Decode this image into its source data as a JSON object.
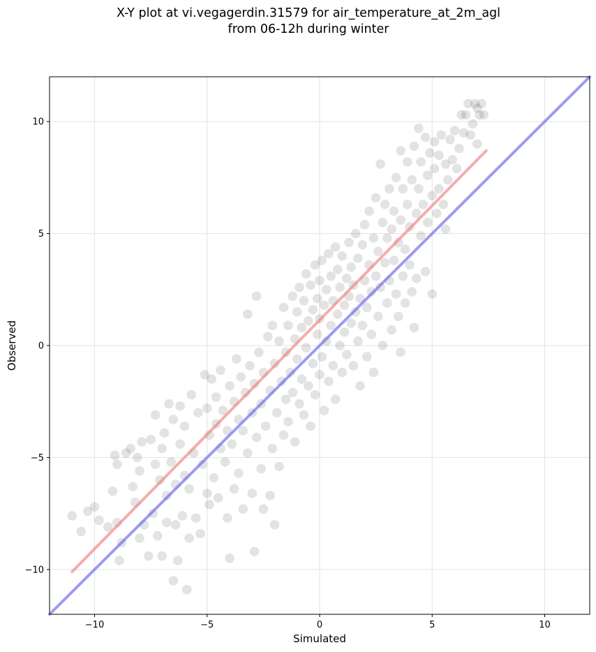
{
  "title": {
    "line1": "X-Y plot at vi.vegagerdin.31579 for air_temperature_at_2m_agl",
    "line2": "from 06-12h during winter"
  },
  "chart_data": {
    "type": "scatter",
    "title": "X-Y plot at vi.vegagerdin.31579 for air_temperature_at_2m_agl from 06-12h during winter",
    "xlabel": "Simulated",
    "ylabel": "Observed",
    "xlim": [
      -12,
      12
    ],
    "ylim": [
      -12,
      12
    ],
    "xticks": [
      -10,
      -5,
      0,
      5,
      10
    ],
    "yticks": [
      -10,
      -5,
      0,
      5,
      10
    ],
    "xtick_labels": [
      "−10",
      "−5",
      "0",
      "5",
      "10"
    ],
    "ytick_labels": [
      "−10",
      "−5",
      "0",
      "5",
      "10"
    ],
    "grid": true,
    "colors": {
      "points": "#000000",
      "fit_line": "#f08080",
      "identity_line": "#6666ee"
    },
    "series": [
      {
        "type": "scatter",
        "points": [
          [
            -11,
            -7.6
          ],
          [
            -10.6,
            -8.3
          ],
          [
            -10.3,
            -7.4
          ],
          [
            -10,
            -7.2
          ],
          [
            -9.8,
            -7.8
          ],
          [
            -9.4,
            -8.1
          ],
          [
            -9.2,
            -6.5
          ],
          [
            -9.1,
            -4.9
          ],
          [
            -9,
            -5.3
          ],
          [
            -9,
            -7.9
          ],
          [
            -8.9,
            -9.6
          ],
          [
            -8.8,
            -8.8
          ],
          [
            -8.6,
            -4.8
          ],
          [
            -8.4,
            -4.6
          ],
          [
            -8.3,
            -6.3
          ],
          [
            -8.2,
            -7.0
          ],
          [
            -8.1,
            -5.0
          ],
          [
            -8,
            -8.6
          ],
          [
            -8,
            -5.6
          ],
          [
            -7.9,
            -4.3
          ],
          [
            -7.8,
            -8.0
          ],
          [
            -7.6,
            -9.4
          ],
          [
            -7.5,
            -4.2
          ],
          [
            -7.4,
            -7.5
          ],
          [
            -7.3,
            -5.3
          ],
          [
            -7.3,
            -3.1
          ],
          [
            -7.2,
            -8.5
          ],
          [
            -7.1,
            -6.0
          ],
          [
            -7,
            -4.6
          ],
          [
            -7,
            -9.4
          ],
          [
            -6.9,
            -3.9
          ],
          [
            -6.8,
            -7.9
          ],
          [
            -6.8,
            -6.7
          ],
          [
            -6.7,
            -2.6
          ],
          [
            -6.6,
            -5.2
          ],
          [
            -6.5,
            -3.3
          ],
          [
            -6.5,
            -10.5
          ],
          [
            -6.4,
            -8.0
          ],
          [
            -6.4,
            -6.2
          ],
          [
            -6.3,
            -9.6
          ],
          [
            -6.2,
            -4.4
          ],
          [
            -6.2,
            -2.7
          ],
          [
            -6.1,
            -7.6
          ],
          [
            -6,
            -5.8
          ],
          [
            -6,
            -3.6
          ],
          [
            -5.9,
            -10.9
          ],
          [
            -5.8,
            -8.6
          ],
          [
            -5.8,
            -6.4
          ],
          [
            -5.7,
            -2.2
          ],
          [
            -5.6,
            -4.8
          ],
          [
            -5.5,
            -7.7
          ],
          [
            -5.4,
            -3.0
          ],
          [
            -5.3,
            -8.4
          ],
          [
            -5.2,
            -5.3
          ],
          [
            -5.1,
            -1.3
          ],
          [
            -5,
            -6.6
          ],
          [
            -5,
            -2.8
          ],
          [
            -4.9,
            -4.0
          ],
          [
            -4.9,
            -7.1
          ],
          [
            -4.8,
            -1.5
          ],
          [
            -4.7,
            -5.9
          ],
          [
            -4.6,
            -3.5
          ],
          [
            -4.6,
            -2.3
          ],
          [
            -4.5,
            -6.8
          ],
          [
            -4.4,
            -4.6
          ],
          [
            -4.4,
            -1.1
          ],
          [
            -4.3,
            -2.9
          ],
          [
            -4.2,
            -5.2
          ],
          [
            -4.1,
            -3.8
          ],
          [
            -4.1,
            -7.7
          ],
          [
            -4,
            -1.8
          ],
          [
            -4,
            -9.5
          ],
          [
            -3.9,
            -4.4
          ],
          [
            -3.8,
            -2.5
          ],
          [
            -3.8,
            -6.4
          ],
          [
            -3.7,
            -0.6
          ],
          [
            -3.6,
            -3.3
          ],
          [
            -3.6,
            -5.7
          ],
          [
            -3.5,
            -1.4
          ],
          [
            -3.4,
            -7.3
          ],
          [
            -3.4,
            -3.8
          ],
          [
            -3.3,
            -2.1
          ],
          [
            -3.2,
            -4.8
          ],
          [
            -3.2,
            1.4
          ],
          [
            -3.1,
            -0.9
          ],
          [
            -3,
            -6.6
          ],
          [
            -3,
            -3.0
          ],
          [
            -2.9,
            -9.2
          ],
          [
            -2.9,
            -1.7
          ],
          [
            -2.8,
            -4.1
          ],
          [
            -2.8,
            2.2
          ],
          [
            -2.7,
            -0.3
          ],
          [
            -2.6,
            -5.5
          ],
          [
            -2.6,
            -2.6
          ],
          [
            -2.5,
            -7.3
          ],
          [
            -2.5,
            -1.2
          ],
          [
            -2.4,
            -3.6
          ],
          [
            -2.3,
            0.4
          ],
          [
            -2.2,
            -6.7
          ],
          [
            -2.2,
            -2.0
          ],
          [
            -2.1,
            -4.6
          ],
          [
            -2.1,
            0.9
          ],
          [
            -2,
            -0.8
          ],
          [
            -2,
            -8.0
          ],
          [
            -1.9,
            -3.0
          ],
          [
            -1.8,
            -5.4
          ],
          [
            -1.8,
            0.2
          ],
          [
            -1.7,
            -1.6
          ],
          [
            -1.6,
            -4.0
          ],
          [
            -1.6,
            1.7
          ],
          [
            -1.5,
            -2.4
          ],
          [
            -1.5,
            -0.3
          ],
          [
            -1.4,
            0.9
          ],
          [
            -1.4,
            -3.4
          ],
          [
            -1.3,
            -1.2
          ],
          [
            -1.2,
            2.2
          ],
          [
            -1.2,
            -2.1
          ],
          [
            -1.1,
            0.3
          ],
          [
            -1.1,
            -4.3
          ],
          [
            -1,
            -0.6
          ],
          [
            -1,
            1.5
          ],
          [
            -0.9,
            -2.6
          ],
          [
            -0.9,
            2.6
          ],
          [
            -0.8,
            -1.5
          ],
          [
            -0.8,
            0.8
          ],
          [
            -0.7,
            -3.1
          ],
          [
            -0.7,
            2.0
          ],
          [
            -0.6,
            -0.1
          ],
          [
            -0.6,
            3.2
          ],
          [
            -0.5,
            -1.8
          ],
          [
            -0.5,
            1.1
          ],
          [
            -0.4,
            -3.6
          ],
          [
            -0.4,
            2.7
          ],
          [
            -0.3,
            -0.8
          ],
          [
            -0.3,
            1.6
          ],
          [
            -0.2,
            3.6
          ],
          [
            -0.2,
            -2.2
          ],
          [
            -0.1,
            0.5
          ],
          [
            -0.1,
            2.1
          ],
          [
            0,
            -1.3
          ],
          [
            0,
            2.9
          ],
          [
            0,
            1.2
          ],
          [
            0.1,
            -0.5
          ],
          [
            0.1,
            3.8
          ],
          [
            0.2,
            -2.9
          ],
          [
            0.2,
            1.8
          ],
          [
            0.3,
            0.2
          ],
          [
            0.3,
            2.5
          ],
          [
            0.4,
            -1.6
          ],
          [
            0.4,
            4.1
          ],
          [
            0.5,
            0.9
          ],
          [
            0.5,
            3.1
          ],
          [
            0.6,
            -0.9
          ],
          [
            0.6,
            2.0
          ],
          [
            0.7,
            4.4
          ],
          [
            0.7,
            -2.4
          ],
          [
            0.8,
            1.4
          ],
          [
            0.8,
            3.4
          ],
          [
            0.9,
            0.0
          ],
          [
            0.9,
            2.6
          ],
          [
            1,
            -1.2
          ],
          [
            1,
            4.0
          ],
          [
            1.1,
            1.8
          ],
          [
            1.1,
            0.6
          ],
          [
            1.2,
            3.0
          ],
          [
            1.2,
            -0.4
          ],
          [
            1.3,
            2.2
          ],
          [
            1.3,
            4.6
          ],
          [
            1.4,
            1.0
          ],
          [
            1.4,
            3.5
          ],
          [
            1.5,
            -0.9
          ],
          [
            1.5,
            2.7
          ],
          [
            1.6,
            5.0
          ],
          [
            1.6,
            1.5
          ],
          [
            1.7,
            0.2
          ],
          [
            1.7,
            3.9
          ],
          [
            1.8,
            2.1
          ],
          [
            1.8,
            -1.8
          ],
          [
            1.9,
            4.5
          ],
          [
            1.9,
            0.9
          ],
          [
            2,
            2.9
          ],
          [
            2,
            5.4
          ],
          [
            2.1,
            1.7
          ],
          [
            2.1,
            -0.5
          ],
          [
            2.2,
            3.6
          ],
          [
            2.2,
            6.0
          ],
          [
            2.3,
            2.4
          ],
          [
            2.3,
            0.5
          ],
          [
            2.4,
            4.8
          ],
          [
            2.4,
            -1.2
          ],
          [
            2.5,
            3.1
          ],
          [
            2.5,
            6.6
          ],
          [
            2.6,
            1.3
          ],
          [
            2.6,
            4.2
          ],
          [
            2.7,
            8.1
          ],
          [
            2.7,
            2.6
          ],
          [
            2.8,
            5.5
          ],
          [
            2.8,
            0.0
          ],
          [
            2.9,
            3.7
          ],
          [
            2.9,
            6.3
          ],
          [
            3,
            1.9
          ],
          [
            3,
            4.8
          ],
          [
            3.1,
            2.9
          ],
          [
            3.1,
            7.0
          ],
          [
            3.2,
            5.2
          ],
          [
            3.2,
            0.7
          ],
          [
            3.3,
            3.8
          ],
          [
            3.3,
            6.0
          ],
          [
            3.4,
            2.3
          ],
          [
            3.4,
            7.5
          ],
          [
            3.5,
            4.6
          ],
          [
            3.5,
            1.3
          ],
          [
            3.6,
            8.7
          ],
          [
            3.6,
            5.6
          ],
          [
            3.6,
            -0.3
          ],
          [
            3.7,
            3.1
          ],
          [
            3.7,
            7.0
          ],
          [
            3.8,
            4.3
          ],
          [
            3.8,
            1.9
          ],
          [
            3.9,
            8.2
          ],
          [
            3.9,
            6.3
          ],
          [
            4,
            3.6
          ],
          [
            4,
            5.3
          ],
          [
            4.1,
            2.4
          ],
          [
            4.1,
            7.4
          ],
          [
            4.2,
            8.9
          ],
          [
            4.2,
            0.8
          ],
          [
            4.3,
            5.9
          ],
          [
            4.3,
            3.0
          ],
          [
            4.4,
            9.7
          ],
          [
            4.4,
            7.0
          ],
          [
            4.5,
            4.9
          ],
          [
            4.5,
            8.2
          ],
          [
            4.6,
            6.3
          ],
          [
            4.7,
            3.3
          ],
          [
            4.7,
            9.3
          ],
          [
            4.8,
            7.6
          ],
          [
            4.8,
            5.5
          ],
          [
            4.9,
            8.6
          ],
          [
            5,
            6.7
          ],
          [
            5,
            2.3
          ],
          [
            5.1,
            9.1
          ],
          [
            5.1,
            7.9
          ],
          [
            5.2,
            5.9
          ],
          [
            5.3,
            8.5
          ],
          [
            5.3,
            7.0
          ],
          [
            5.4,
            9.4
          ],
          [
            5.5,
            6.3
          ],
          [
            5.6,
            8.1
          ],
          [
            5.6,
            5.2
          ],
          [
            5.7,
            7.4
          ],
          [
            5.8,
            9.2
          ],
          [
            5.9,
            8.3
          ],
          [
            6,
            9.6
          ],
          [
            6.1,
            7.9
          ],
          [
            6.2,
            8.8
          ],
          [
            6.3,
            10.3
          ],
          [
            6.4,
            9.5
          ],
          [
            6.5,
            10.3
          ],
          [
            6.6,
            10.8
          ],
          [
            6.7,
            9.4
          ],
          [
            6.8,
            9.9
          ],
          [
            6.9,
            10.8
          ],
          [
            7,
            10.6
          ],
          [
            7,
            9.0
          ],
          [
            7.1,
            10.3
          ],
          [
            7.2,
            10.8
          ],
          [
            7.3,
            10.3
          ]
        ]
      },
      {
        "type": "line",
        "name": "",
        "x": [
          -11.0,
          7.4
        ],
        "y": [
          -10.1,
          8.7
        ]
      },
      {
        "type": "line",
        "name": "",
        "x": [
          -12.0,
          12.0
        ],
        "y": [
          -12.0,
          12.0
        ]
      }
    ]
  }
}
